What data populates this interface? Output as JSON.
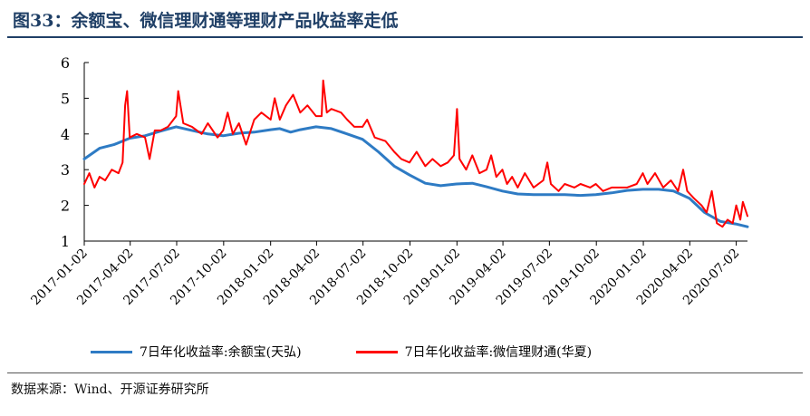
{
  "title": "图33：余额宝、微信理财通等理财产品收益率走低",
  "source": "数据来源：Wind、开源证券研究所",
  "chart_data": {
    "type": "line",
    "ylim": [
      1,
      6
    ],
    "yticks": [
      "1",
      "2",
      "3",
      "4",
      "5",
      "6"
    ],
    "xlim": [
      "2017-01-02",
      "2020-07-24"
    ],
    "xticks": [
      "2017-01-02",
      "2017-04-02",
      "2017-07-02",
      "2017-10-02",
      "2018-01-02",
      "2018-04-02",
      "2018-07-02",
      "2018-10-02",
      "2019-01-02",
      "2019-04-02",
      "2019-07-02",
      "2019-10-02",
      "2020-01-02",
      "2020-04-02",
      "2020-07-02"
    ],
    "grid": false,
    "legend": "bottom",
    "series": [
      {
        "name": "7日年化收益率:余额宝(天弘)",
        "color": "#2e7bc4",
        "points": [
          [
            "2017-01-02",
            3.3
          ],
          [
            "2017-02-01",
            3.6
          ],
          [
            "2017-03-01",
            3.7
          ],
          [
            "2017-04-01",
            3.88
          ],
          [
            "2017-05-01",
            3.95
          ],
          [
            "2017-06-01",
            4.08
          ],
          [
            "2017-07-01",
            4.2
          ],
          [
            "2017-08-01",
            4.1
          ],
          [
            "2017-09-01",
            4.0
          ],
          [
            "2017-10-01",
            3.95
          ],
          [
            "2017-11-01",
            4.02
          ],
          [
            "2017-12-01",
            4.05
          ],
          [
            "2018-01-02",
            4.12
          ],
          [
            "2018-01-20",
            4.15
          ],
          [
            "2018-02-10",
            4.05
          ],
          [
            "2018-03-01",
            4.12
          ],
          [
            "2018-04-01",
            4.2
          ],
          [
            "2018-05-01",
            4.15
          ],
          [
            "2018-06-01",
            4.0
          ],
          [
            "2018-07-01",
            3.85
          ],
          [
            "2018-08-01",
            3.5
          ],
          [
            "2018-09-01",
            3.1
          ],
          [
            "2018-10-01",
            2.85
          ],
          [
            "2018-11-01",
            2.62
          ],
          [
            "2018-12-01",
            2.55
          ],
          [
            "2019-01-01",
            2.6
          ],
          [
            "2019-02-01",
            2.62
          ],
          [
            "2019-03-01",
            2.52
          ],
          [
            "2019-04-01",
            2.4
          ],
          [
            "2019-05-01",
            2.32
          ],
          [
            "2019-06-01",
            2.3
          ],
          [
            "2019-07-01",
            2.3
          ],
          [
            "2019-08-01",
            2.3
          ],
          [
            "2019-09-01",
            2.28
          ],
          [
            "2019-10-01",
            2.3
          ],
          [
            "2019-11-01",
            2.35
          ],
          [
            "2019-12-01",
            2.42
          ],
          [
            "2020-01-01",
            2.45
          ],
          [
            "2020-02-01",
            2.45
          ],
          [
            "2020-03-01",
            2.4
          ],
          [
            "2020-04-01",
            2.2
          ],
          [
            "2020-05-01",
            1.8
          ],
          [
            "2020-06-01",
            1.55
          ],
          [
            "2020-07-01",
            1.48
          ],
          [
            "2020-07-24",
            1.4
          ]
        ]
      },
      {
        "name": "7日年化收益率:微信理财通(华夏)",
        "color": "#ff0000",
        "points": [
          [
            "2017-01-02",
            2.6
          ],
          [
            "2017-01-12",
            2.9
          ],
          [
            "2017-01-22",
            2.5
          ],
          [
            "2017-02-01",
            2.8
          ],
          [
            "2017-02-12",
            2.7
          ],
          [
            "2017-02-25",
            3.0
          ],
          [
            "2017-03-10",
            2.9
          ],
          [
            "2017-03-18",
            3.2
          ],
          [
            "2017-03-23",
            4.8
          ],
          [
            "2017-03-27",
            5.2
          ],
          [
            "2017-04-01",
            3.9
          ],
          [
            "2017-04-15",
            4.0
          ],
          [
            "2017-05-01",
            3.9
          ],
          [
            "2017-05-10",
            3.3
          ],
          [
            "2017-05-20",
            4.1
          ],
          [
            "2017-06-01",
            4.1
          ],
          [
            "2017-06-15",
            4.2
          ],
          [
            "2017-07-01",
            4.5
          ],
          [
            "2017-07-05",
            5.2
          ],
          [
            "2017-07-15",
            4.3
          ],
          [
            "2017-08-01",
            4.2
          ],
          [
            "2017-08-20",
            4.0
          ],
          [
            "2017-09-01",
            4.3
          ],
          [
            "2017-09-20",
            3.9
          ],
          [
            "2017-10-01",
            4.1
          ],
          [
            "2017-10-10",
            4.6
          ],
          [
            "2017-10-20",
            4.0
          ],
          [
            "2017-11-01",
            4.3
          ],
          [
            "2017-11-15",
            3.7
          ],
          [
            "2017-12-01",
            4.4
          ],
          [
            "2017-12-15",
            4.6
          ],
          [
            "2018-01-02",
            4.4
          ],
          [
            "2018-01-10",
            5.0
          ],
          [
            "2018-01-20",
            4.4
          ],
          [
            "2018-02-01",
            4.8
          ],
          [
            "2018-02-15",
            5.1
          ],
          [
            "2018-03-01",
            4.6
          ],
          [
            "2018-03-15",
            4.8
          ],
          [
            "2018-04-01",
            4.5
          ],
          [
            "2018-04-12",
            4.5
          ],
          [
            "2018-04-15",
            5.5
          ],
          [
            "2018-04-22",
            4.6
          ],
          [
            "2018-05-01",
            4.7
          ],
          [
            "2018-05-20",
            4.6
          ],
          [
            "2018-06-01",
            4.4
          ],
          [
            "2018-06-15",
            4.2
          ],
          [
            "2018-07-01",
            4.2
          ],
          [
            "2018-07-10",
            4.4
          ],
          [
            "2018-07-25",
            3.9
          ],
          [
            "2018-08-15",
            3.8
          ],
          [
            "2018-09-01",
            3.5
          ],
          [
            "2018-09-15",
            3.3
          ],
          [
            "2018-10-01",
            3.2
          ],
          [
            "2018-10-15",
            3.5
          ],
          [
            "2018-11-01",
            3.1
          ],
          [
            "2018-11-15",
            3.3
          ],
          [
            "2018-12-01",
            3.1
          ],
          [
            "2018-12-15",
            3.2
          ],
          [
            "2018-12-27",
            3.4
          ],
          [
            "2019-01-02",
            4.7
          ],
          [
            "2019-01-07",
            3.3
          ],
          [
            "2019-01-20",
            3.0
          ],
          [
            "2019-02-01",
            3.4
          ],
          [
            "2019-02-15",
            2.9
          ],
          [
            "2019-03-01",
            3.0
          ],
          [
            "2019-03-10",
            3.4
          ],
          [
            "2019-03-20",
            2.8
          ],
          [
            "2019-04-01",
            3.0
          ],
          [
            "2019-04-10",
            2.6
          ],
          [
            "2019-04-20",
            2.8
          ],
          [
            "2019-05-01",
            2.5
          ],
          [
            "2019-05-15",
            2.9
          ],
          [
            "2019-06-01",
            2.5
          ],
          [
            "2019-06-20",
            2.7
          ],
          [
            "2019-06-28",
            3.2
          ],
          [
            "2019-07-05",
            2.6
          ],
          [
            "2019-07-20",
            2.4
          ],
          [
            "2019-08-01",
            2.6
          ],
          [
            "2019-08-20",
            2.5
          ],
          [
            "2019-09-01",
            2.6
          ],
          [
            "2019-09-20",
            2.5
          ],
          [
            "2019-10-01",
            2.6
          ],
          [
            "2019-10-15",
            2.4
          ],
          [
            "2019-11-01",
            2.5
          ],
          [
            "2019-11-15",
            2.5
          ],
          [
            "2019-12-01",
            2.5
          ],
          [
            "2019-12-20",
            2.6
          ],
          [
            "2020-01-01",
            2.9
          ],
          [
            "2020-01-10",
            2.6
          ],
          [
            "2020-01-25",
            2.9
          ],
          [
            "2020-02-10",
            2.5
          ],
          [
            "2020-02-25",
            2.7
          ],
          [
            "2020-03-10",
            2.4
          ],
          [
            "2020-03-20",
            3.0
          ],
          [
            "2020-03-28",
            2.4
          ],
          [
            "2020-04-10",
            2.2
          ],
          [
            "2020-04-25",
            2.0
          ],
          [
            "2020-05-05",
            1.8
          ],
          [
            "2020-05-15",
            2.4
          ],
          [
            "2020-05-25",
            1.5
          ],
          [
            "2020-06-05",
            1.4
          ],
          [
            "2020-06-15",
            1.6
          ],
          [
            "2020-06-25",
            1.5
          ],
          [
            "2020-07-02",
            2.0
          ],
          [
            "2020-07-10",
            1.6
          ],
          [
            "2020-07-15",
            2.1
          ],
          [
            "2020-07-24",
            1.7
          ]
        ]
      }
    ]
  }
}
